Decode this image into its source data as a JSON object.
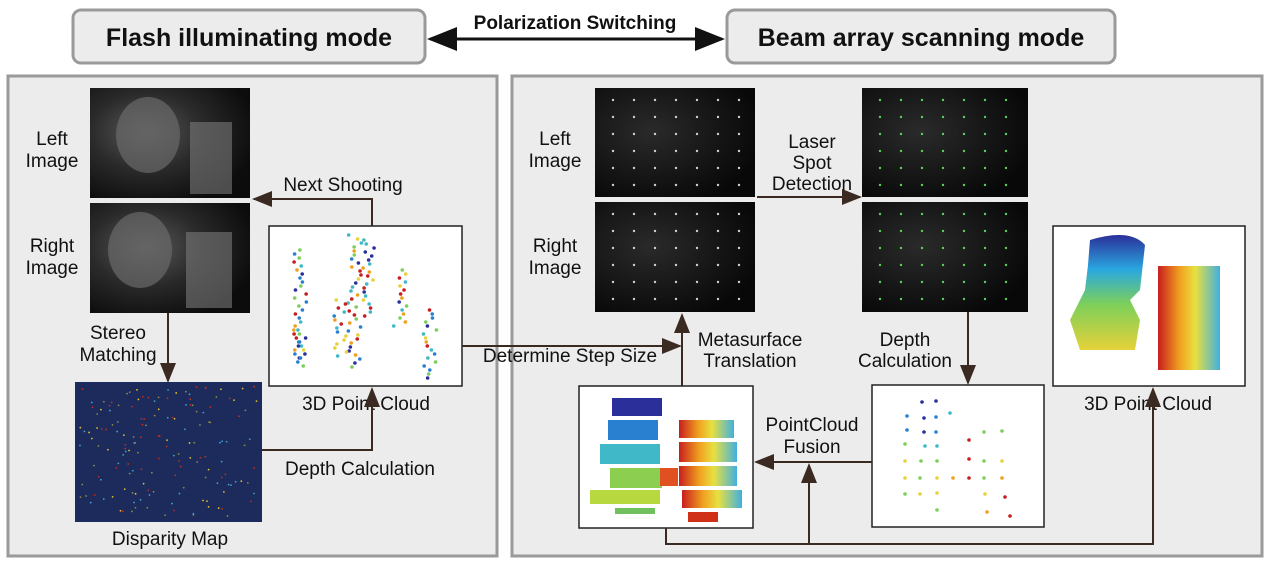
{
  "header": {
    "left_mode": "Flash illuminating mode",
    "right_mode": "Beam array scanning mode",
    "switch_label": "Polarization Switching"
  },
  "flash_panel": {
    "left_image_label": [
      "Left",
      "Image"
    ],
    "right_image_label": [
      "Right",
      "Image"
    ],
    "next_shooting": "Next Shooting",
    "stereo_matching": [
      "Stereo",
      "Matching"
    ],
    "disparity_map": "Disparity Map",
    "depth_calculation": "Depth Calculation",
    "point_cloud": "3D Point Cloud"
  },
  "link_label": "Determine Step Size",
  "beam_panel": {
    "left_image_label": [
      "Left",
      "Image"
    ],
    "right_image_label": [
      "Right",
      "Image"
    ],
    "laser_spot_detection": [
      "Laser",
      "Spot",
      "Detection"
    ],
    "metasurface_translation": [
      "Metasurface",
      "Translation"
    ],
    "depth_calculation": [
      "Depth",
      "Calculation"
    ],
    "pointcloud_fusion": [
      "PointCloud",
      "Fusion"
    ],
    "point_cloud": "3D Point Cloud"
  },
  "colors": {
    "panel_bg": "#ececec",
    "panel_border": "#9a9a9a",
    "arrow": "#3a2a22",
    "disparity_bg": "#1c2a5c"
  }
}
